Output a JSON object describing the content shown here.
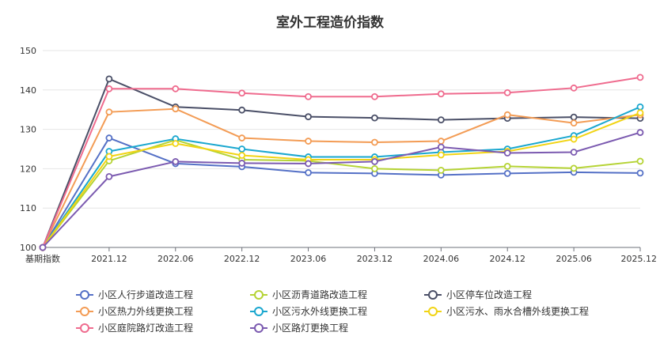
{
  "chart_data": {
    "type": "line",
    "title": "室外工程造价指数",
    "xlabel": "",
    "ylabel": "",
    "categories": [
      "基期指数",
      "2021.12",
      "2022.06",
      "2022.12",
      "2023.06",
      "2023.12",
      "2024.06",
      "2024.12",
      "2025.06",
      "2025.12"
    ],
    "ylim": [
      100,
      150
    ],
    "yticks": [
      100,
      110,
      120,
      130,
      140,
      150
    ],
    "grid": true,
    "legend_position": "bottom",
    "series": [
      {
        "name": "小区人行步道改造工程",
        "color": "#5470c6",
        "values": [
          100,
          127.8,
          121.3,
          120.5,
          119.0,
          118.8,
          118.4,
          118.8,
          119.1,
          118.9
        ]
      },
      {
        "name": "小区沥青道路改造工程",
        "color": "#b5d334",
        "values": [
          100,
          122.0,
          127.3,
          122.3,
          122.0,
          120.0,
          119.6,
          120.6,
          120.1,
          121.9
        ]
      },
      {
        "name": "小区停车位改造工程",
        "color": "#4a4f67",
        "values": [
          100,
          142.8,
          135.7,
          134.9,
          133.2,
          132.9,
          132.4,
          132.8,
          133.1,
          132.8
        ]
      },
      {
        "name": "小区热力外线更换工程",
        "color": "#f39c55",
        "values": [
          100,
          134.4,
          135.2,
          127.8,
          127.0,
          126.7,
          127.0,
          133.7,
          131.6,
          133.7
        ]
      },
      {
        "name": "小区污水外线更换工程",
        "color": "#1aa7cf",
        "values": [
          100,
          124.4,
          127.6,
          125.0,
          123.0,
          123.0,
          124.2,
          125.0,
          128.4,
          135.7
        ]
      },
      {
        "name": "小区污水、雨水合槽外线更换工程",
        "color": "#f1d414",
        "values": [
          100,
          123.1,
          126.4,
          123.4,
          122.3,
          122.3,
          123.5,
          124.4,
          127.5,
          134.2
        ]
      },
      {
        "name": "小区庭院路灯改造工程",
        "color": "#ef6b8e",
        "values": [
          100,
          140.3,
          140.3,
          139.2,
          138.3,
          138.3,
          139.0,
          139.3,
          140.5,
          143.2
        ]
      },
      {
        "name": "小区路灯更换工程",
        "color": "#7b5ab0",
        "values": [
          100,
          118.0,
          121.8,
          121.4,
          121.3,
          121.8,
          125.5,
          124.0,
          124.2,
          129.2
        ]
      }
    ]
  }
}
